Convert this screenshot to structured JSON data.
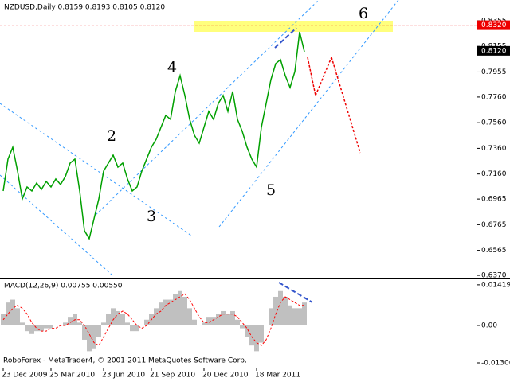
{
  "chart_data": [
    {
      "type": "line",
      "title": "NZDUSD,Daily  0.8159 0.8193 0.8105 0.8120",
      "color": "#00a000",
      "categories": [
        "23 Dec 2009",
        null,
        null,
        null,
        null,
        null,
        null,
        null,
        null,
        null,
        "25 Mar 2010",
        null,
        null,
        null,
        null,
        null,
        null,
        null,
        null,
        null,
        null,
        "23 Jun 2010",
        null,
        null,
        null,
        null,
        null,
        null,
        null,
        null,
        null,
        "21 Sep 2010",
        null,
        null,
        null,
        null,
        null,
        null,
        null,
        null,
        null,
        null,
        "20 Dec 2010",
        null,
        null,
        null,
        null,
        null,
        null,
        null,
        null,
        null,
        null,
        "18 Mar 2011",
        null,
        null,
        null,
        null,
        null,
        null,
        null,
        null,
        null,
        null
      ],
      "values": [
        0.7028,
        0.7276,
        0.7369,
        0.7183,
        0.6966,
        0.7059,
        0.7028,
        0.709,
        0.704,
        0.7102,
        0.7059,
        0.7121,
        0.7078,
        0.714,
        0.7245,
        0.7276,
        0.7028,
        0.6718,
        0.6656,
        0.6811,
        0.6966,
        0.7183,
        0.7245,
        0.7307,
        0.7214,
        0.7245,
        0.7121,
        0.7028,
        0.7059,
        0.7183,
        0.7276,
        0.7369,
        0.7431,
        0.7524,
        0.7617,
        0.7586,
        0.7803,
        0.7927,
        0.7772,
        0.7586,
        0.7462,
        0.74,
        0.7524,
        0.7648,
        0.7586,
        0.771,
        0.7772,
        0.7648,
        0.7803,
        0.7586,
        0.7493,
        0.7369,
        0.7276,
        0.7214,
        0.7524,
        0.771,
        0.7896,
        0.802,
        0.8051,
        0.7927,
        0.7834,
        0.7958,
        0.8268,
        0.8113
      ],
      "ylim": [
        0.6358,
        0.8516
      ],
      "yticks": [
        {
          "value": 0.8355,
          "label": "0.8355"
        },
        {
          "value": 0.8155,
          "label": "0.8155"
        },
        {
          "value": 0.7955,
          "label": "0.7955"
        },
        {
          "value": 0.776,
          "label": "0.7760"
        },
        {
          "value": 0.756,
          "label": "0.7560"
        },
        {
          "value": 0.736,
          "label": "0.7360"
        },
        {
          "value": 0.716,
          "label": "0.7160"
        },
        {
          "value": 0.6965,
          "label": "0.6965"
        },
        {
          "value": 0.6765,
          "label": "0.6765"
        },
        {
          "value": 0.6565,
          "label": "0.6565"
        },
        {
          "value": 0.637,
          "label": "0.6370"
        }
      ],
      "resistance": {
        "value": 0.832,
        "label": "0.8320"
      },
      "current_price": {
        "value": 0.812,
        "label": "0.8120"
      },
      "annotations": [
        "2",
        "3",
        "4",
        "5",
        "6"
      ]
    },
    {
      "type": "macd",
      "title": "MACD(12,26,9) 0.00755 0.00550",
      "color": "#c0c0c0",
      "signal_color": "#ff0000",
      "values": [
        0.004,
        0.008,
        0.009,
        0.006,
        0.001,
        -0.002,
        -0.003,
        -0.002,
        -0.002,
        -0.001,
        -0.001,
        0,
        0,
        0.001,
        0.003,
        0.004,
        0.001,
        -0.005,
        -0.009,
        -0.008,
        -0.004,
        0.001,
        0.004,
        0.006,
        0.005,
        0.004,
        0.001,
        -0.002,
        -0.002,
        0,
        0.002,
        0.004,
        0.006,
        0.008,
        0.009,
        0.009,
        0.011,
        0.012,
        0.01,
        0.006,
        0.002,
        0,
        0.001,
        0.003,
        0.003,
        0.004,
        0.005,
        0.004,
        0.005,
        0.002,
        -0.001,
        -0.004,
        -0.007,
        -0.009,
        -0.006,
        0,
        0.006,
        0.01,
        0.012,
        0.01,
        0.007,
        0.006,
        0.006,
        0.008
      ],
      "signal": [
        0.002,
        0.004,
        0.006,
        0.007,
        0.006,
        0.004,
        0.001,
        -0.001,
        -0.002,
        -0.002,
        -0.001,
        -0.001,
        0,
        0,
        0.001,
        0.002,
        0.002,
        0,
        -0.003,
        -0.006,
        -0.007,
        -0.004,
        -0.001,
        0.002,
        0.004,
        0.005,
        0.004,
        0.002,
        0,
        -0.001,
        0,
        0.002,
        0.004,
        0.005,
        0.007,
        0.008,
        0.009,
        0.01,
        0.011,
        0.009,
        0.006,
        0.003,
        0.001,
        0.001,
        0.002,
        0.003,
        0.004,
        0.004,
        0.004,
        0.003,
        0.001,
        -0.001,
        -0.004,
        -0.006,
        -0.007,
        -0.005,
        -0.001,
        0.004,
        0.008,
        0.01,
        0.009,
        0.008,
        0.007,
        0.007
      ],
      "ylim": [
        -0.01473,
        0.0161
      ],
      "yticks": [
        {
          "value": 0.01419,
          "label": "0.01419"
        },
        {
          "value": 0,
          "label": "0.00"
        },
        {
          "value": -0.01306,
          "label": "-0.01306"
        }
      ]
    },
    {
      "footer": "RoboForex - MetaTrader4, © 2001-2011 MetaQuotes Software Corp."
    }
  ]
}
